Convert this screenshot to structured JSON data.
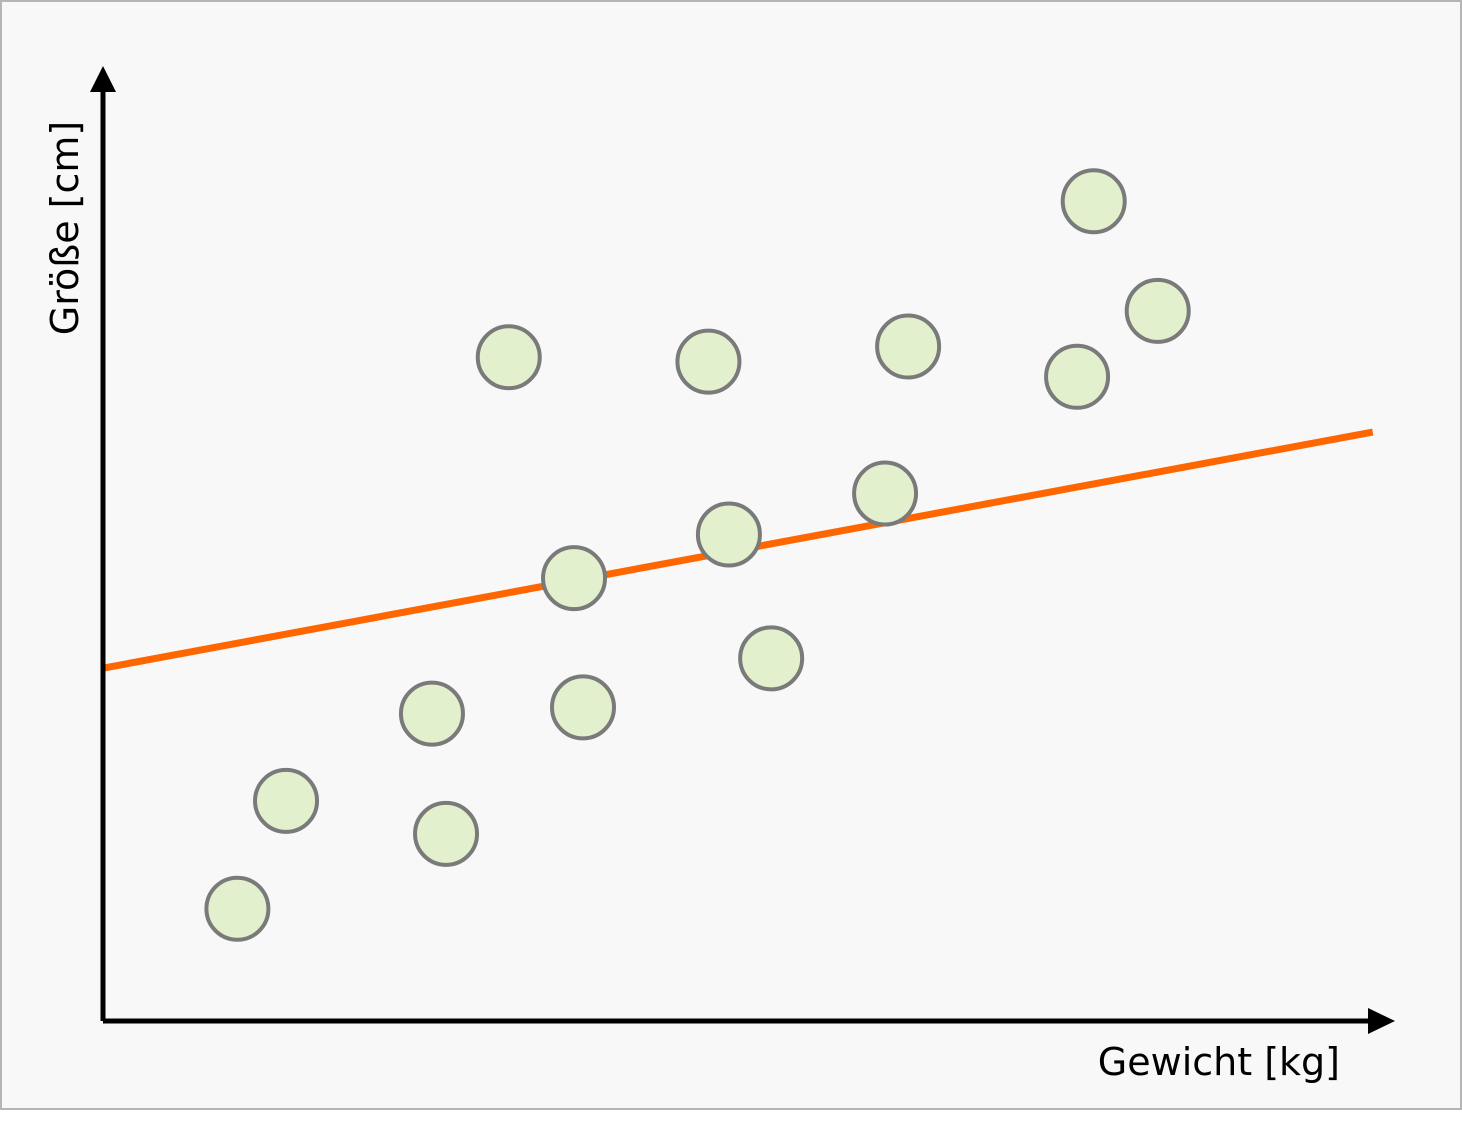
{
  "chart_data": {
    "type": "scatter",
    "title": "",
    "xlabel": "Gewicht [kg]",
    "ylabel": "Größe [cm]",
    "xlim": [
      0,
      100
    ],
    "ylim": [
      0,
      100
    ],
    "grid": false,
    "legend": "none",
    "series": [
      {
        "type": "scatter",
        "points": [
          {
            "x": 10.5,
            "y": 12.6
          },
          {
            "x": 14.3,
            "y": 24.7
          },
          {
            "x": 25.7,
            "y": 34.5
          },
          {
            "x": 26.8,
            "y": 21.0
          },
          {
            "x": 31.7,
            "y": 74.5
          },
          {
            "x": 36.8,
            "y": 49.7
          },
          {
            "x": 37.5,
            "y": 35.2
          },
          {
            "x": 47.3,
            "y": 74.0
          },
          {
            "x": 48.9,
            "y": 54.6
          },
          {
            "x": 52.2,
            "y": 40.7
          },
          {
            "x": 61.1,
            "y": 59.2
          },
          {
            "x": 62.9,
            "y": 75.7
          },
          {
            "x": 76.1,
            "y": 72.3
          },
          {
            "x": 77.4,
            "y": 92.0
          },
          {
            "x": 82.4,
            "y": 79.7
          }
        ]
      },
      {
        "type": "line",
        "points": [
          {
            "x": 0,
            "y": 39.6
          },
          {
            "x": 99.2,
            "y": 66.1
          }
        ]
      }
    ],
    "colors": {
      "marker_fill": "#e3f0cd",
      "marker_stroke": "#7a7a7a",
      "trend_line": "#ff6600",
      "axis": "#000000",
      "frame_bg": "#f8f8f8",
      "frame_border": "#b5b5b5"
    }
  }
}
